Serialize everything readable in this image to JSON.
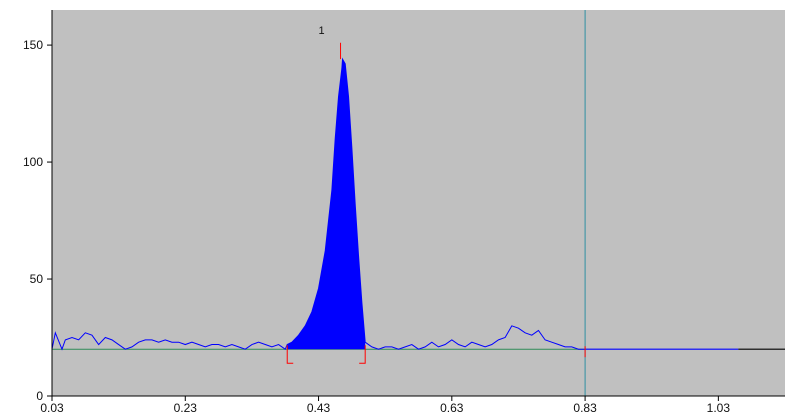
{
  "chart_data": {
    "type": "area",
    "title": "",
    "xlabel": "",
    "ylabel": "",
    "xlim": [
      0.03,
      1.13
    ],
    "ylim": [
      0,
      165
    ],
    "x_ticks": [
      "0.03",
      "0.23",
      "0.43",
      "0.63",
      "0.83",
      "1.03"
    ],
    "y_ticks": [
      "0",
      "50",
      "100",
      "150"
    ],
    "grid": false,
    "legend": "none",
    "colors": {
      "plot_background": "#c0c0c0",
      "trace": "#0000ff",
      "peak_fill": "#0000ff",
      "baseline": "#2e8b57",
      "vertical_marker": "#2f8fa3",
      "integration_marks": "#ff0000",
      "flat_tail": "#000000"
    },
    "vertical_marker_x": 0.83,
    "baseline_y": 20,
    "peak": {
      "label": "1",
      "apex_x": 0.466,
      "apex_y": 144,
      "start_x": 0.383,
      "end_x": 0.5,
      "marker_top_y": 151
    },
    "series": [
      {
        "values_x": [
          0.03,
          0.035,
          0.045,
          0.05,
          0.06,
          0.07,
          0.08,
          0.09,
          0.1,
          0.11,
          0.12,
          0.13,
          0.14,
          0.15,
          0.16,
          0.17,
          0.18,
          0.19,
          0.2,
          0.21,
          0.22,
          0.23,
          0.24,
          0.25,
          0.26,
          0.27,
          0.28,
          0.29,
          0.3,
          0.31,
          0.32,
          0.33,
          0.34,
          0.35,
          0.36,
          0.37,
          0.38,
          0.383,
          0.39,
          0.4,
          0.41,
          0.42,
          0.43,
          0.44,
          0.45,
          0.455,
          0.46,
          0.465,
          0.466,
          0.47,
          0.475,
          0.48,
          0.485,
          0.49,
          0.495,
          0.5,
          0.51,
          0.52,
          0.53,
          0.54,
          0.55,
          0.56,
          0.57,
          0.58,
          0.59,
          0.6,
          0.61,
          0.62,
          0.63,
          0.64,
          0.65,
          0.66,
          0.67,
          0.68,
          0.69,
          0.7,
          0.71,
          0.72,
          0.73,
          0.74,
          0.75,
          0.76,
          0.77,
          0.78,
          0.79,
          0.8,
          0.81,
          0.82,
          0.83
        ],
        "values_y": [
          20,
          27,
          20,
          24,
          25,
          24,
          27,
          26,
          22,
          25,
          24,
          22,
          20,
          21,
          23,
          24,
          24,
          23,
          24,
          23,
          23,
          22,
          23,
          22,
          21,
          22,
          22,
          21,
          22,
          21,
          20,
          22,
          23,
          22,
          21,
          22,
          20,
          22,
          23,
          26,
          30,
          36,
          46,
          62,
          88,
          110,
          128,
          140,
          144,
          142,
          128,
          106,
          82,
          60,
          40,
          23,
          21,
          20,
          21,
          21,
          20,
          21,
          22,
          20,
          21,
          23,
          21,
          22,
          24,
          22,
          21,
          23,
          22,
          21,
          22,
          24,
          25,
          30,
          29,
          27,
          26,
          28,
          24,
          23,
          22,
          21,
          21,
          20,
          20
        ]
      },
      {
        "values_x": [
          0.83,
          1.06
        ],
        "values_y": [
          20,
          20
        ]
      },
      {
        "values_x": [
          1.06,
          1.13
        ],
        "values_y": [
          20,
          20
        ]
      }
    ]
  }
}
